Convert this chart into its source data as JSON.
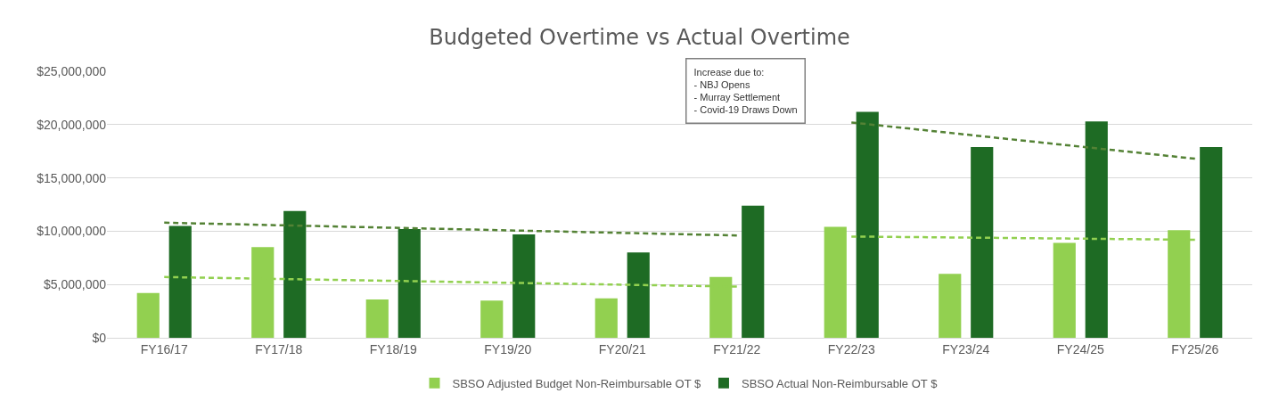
{
  "chart_data": {
    "type": "bar",
    "title": "Budgeted Overtime vs Actual Overtime",
    "categories": [
      "FY16/17",
      "FY17/18",
      "FY18/19",
      "FY19/20",
      "FY20/21",
      "FY21/22",
      "FY22/23",
      "FY23/24",
      "FY24/25",
      "FY25/26"
    ],
    "series": [
      {
        "name": "SBSO Adjusted Budget Non-Reimbursable OT $",
        "color": "#92d050",
        "values": [
          4200000,
          8500000,
          3600000,
          3500000,
          3700000,
          5700000,
          10400000,
          6000000,
          8900000,
          10100000
        ]
      },
      {
        "name": "SBSO Actual Non-Reimbursable OT $",
        "color": "#1e6b24",
        "values": [
          10500000,
          11900000,
          10200000,
          9700000,
          8000000,
          12400000,
          21200000,
          17900000,
          20300000,
          17900000
        ]
      },
      {
        "type": "line",
        "color": "#92d050",
        "line_style": "dashed",
        "marker": "none",
        "x": [
          "FY16/17",
          "FY21/22"
        ],
        "values": [
          5700000,
          4800000
        ]
      },
      {
        "type": "line",
        "color": "#548235",
        "line_style": "dashed",
        "marker": "none",
        "x": [
          "FY16/17",
          "FY21/22"
        ],
        "values": [
          10800000,
          9600000
        ]
      },
      {
        "type": "line",
        "color": "#92d050",
        "line_style": "dashed",
        "marker": "none",
        "x": [
          "FY22/23",
          "FY25/26"
        ],
        "values": [
          9500000,
          9200000
        ]
      },
      {
        "type": "line",
        "color": "#548235",
        "line_style": "dashed",
        "marker": "none",
        "x": [
          "FY22/23",
          "FY25/26"
        ],
        "values": [
          20200000,
          16800000
        ]
      }
    ],
    "ylim": [
      0,
      25000000
    ],
    "yticks": [
      {
        "value": 0,
        "label": "$0"
      },
      {
        "value": 5000000,
        "label": "$5,000,000"
      },
      {
        "value": 10000000,
        "label": "$10,000,000"
      },
      {
        "value": 15000000,
        "label": "$15,000,000"
      },
      {
        "value": 20000000,
        "label": "$20,000,000"
      },
      {
        "value": 25000000,
        "label": "$25,000,000"
      }
    ],
    "grid": "y",
    "legend": "bottom",
    "annotations": [
      "Increase due to:\n- NBJ Opens\n- Murray Settlement\n- Covid-19 Draws Down"
    ]
  }
}
